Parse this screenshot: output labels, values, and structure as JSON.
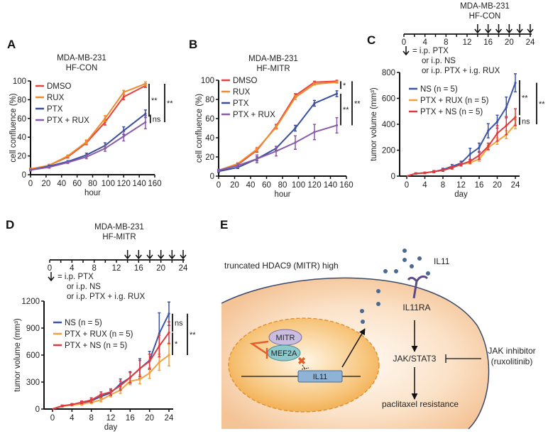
{
  "panels": {
    "A": {
      "label": "A"
    },
    "B": {
      "label": "B"
    },
    "C": {
      "label": "C"
    },
    "D": {
      "label": "D"
    },
    "E": {
      "label": "E",
      "cell_label": "truncated HDAC9 (MITR) high",
      "ligand": "IL11",
      "receptor": "IL11RA",
      "mitr": "MITR",
      "mef2a": "MEF2A",
      "gene": "IL11",
      "pathway": "JAK/STAT3",
      "outcome": "paclitaxel resistance",
      "inhibitor_line1": "JAK inhibitor",
      "inhibitor_line2": "(ruxolitinib)",
      "colors": {
        "cell": "#f6c9a0",
        "nucleus": "#f2a94a",
        "membrane": "#3b4a6b",
        "dots": "#4a6a94",
        "receptor": "#5b4a8a",
        "mitr": "#c9bde0",
        "mef2a": "#8cc8cc",
        "gene_box": "#8fb3d6"
      }
    }
  },
  "chart_data": [
    {
      "id": "A",
      "type": "line",
      "title": [
        "MDA-MB-231",
        "HF-CON"
      ],
      "xlabel": "hour",
      "ylabel": "cell confluence (%)",
      "xlim": [
        0,
        160
      ],
      "ylim": [
        0,
        100
      ],
      "xticks": [
        0,
        20,
        40,
        60,
        80,
        100,
        120,
        140,
        160
      ],
      "yticks": [
        0,
        20,
        40,
        60,
        80,
        100
      ],
      "x": [
        0,
        24,
        48,
        72,
        96,
        120,
        148
      ],
      "legend_position": "top-left",
      "series": [
        {
          "name": "DMSO",
          "color": "#e8413a",
          "values": [
            6,
            10,
            19,
            34,
            56,
            83,
            95
          ],
          "err": [
            1,
            1,
            1,
            2,
            3,
            3,
            2
          ]
        },
        {
          "name": "RUX",
          "color": "#f08c2c",
          "values": [
            6,
            10,
            20,
            35,
            60,
            88,
            97
          ],
          "err": [
            1,
            1,
            1,
            2,
            3,
            2,
            2
          ]
        },
        {
          "name": "PTX",
          "color": "#3a4f9c",
          "values": [
            5,
            9,
            14,
            21,
            31,
            47,
            65
          ],
          "err": [
            1,
            1,
            1,
            2,
            3,
            4,
            4
          ]
        },
        {
          "name": "PTX + RUX",
          "color": "#8a5aa8",
          "values": [
            5,
            8,
            13,
            19,
            28,
            41,
            56
          ],
          "err": [
            1,
            1,
            1,
            2,
            3,
            5,
            7
          ]
        }
      ],
      "significance": [
        {
          "from": 97,
          "to": 62,
          "label": "**",
          "level": 0
        },
        {
          "from": 64,
          "to": 55,
          "label": "ns",
          "level": 0.3
        },
        {
          "from": 97,
          "to": 56,
          "label": "**",
          "level": 1
        }
      ]
    },
    {
      "id": "B",
      "type": "line",
      "title": [
        "MDA-MB-231",
        "HF-MITR"
      ],
      "xlabel": "hour",
      "ylabel": "cell confluence (%)",
      "xlim": [
        0,
        160
      ],
      "ylim": [
        0,
        100
      ],
      "xticks": [
        0,
        20,
        40,
        60,
        80,
        100,
        120,
        140,
        160
      ],
      "yticks": [
        0,
        20,
        40,
        60,
        80,
        100
      ],
      "x": [
        0,
        24,
        48,
        72,
        96,
        120,
        148
      ],
      "legend_position": "top-left",
      "series": [
        {
          "name": "DMSO",
          "color": "#e8413a",
          "values": [
            6,
            12,
            27,
            52,
            84,
            98,
            99
          ],
          "err": [
            1,
            1,
            2,
            2,
            2,
            1,
            1
          ]
        },
        {
          "name": "RUX",
          "color": "#f08c2c",
          "values": [
            6,
            13,
            28,
            51,
            82,
            96,
            98
          ],
          "err": [
            1,
            1,
            2,
            2,
            2,
            1,
            1
          ]
        },
        {
          "name": "PTX",
          "color": "#3a4f9c",
          "values": [
            5,
            9,
            18,
            29,
            50,
            76,
            86
          ],
          "err": [
            1,
            1,
            2,
            2,
            3,
            3,
            3
          ]
        },
        {
          "name": "PTX + RUX",
          "color": "#8a5aa8",
          "values": [
            6,
            11,
            18,
            26,
            35,
            46,
            53
          ],
          "err": [
            1,
            2,
            4,
            5,
            7,
            8,
            8
          ]
        }
      ],
      "significance": [
        {
          "from": 99,
          "to": 91,
          "label": "*",
          "level": 0
        },
        {
          "from": 86,
          "to": 53,
          "label": "**",
          "level": 0
        },
        {
          "from": 99,
          "to": 53,
          "label": "**",
          "level": 1
        }
      ]
    },
    {
      "id": "C",
      "type": "line",
      "title": [
        "MDA-MB-231",
        "HF-CON"
      ],
      "xlabel": "day",
      "ylabel": "tumor volume (mm³)",
      "xlim": [
        0,
        24
      ],
      "ylim": [
        0,
        800
      ],
      "xticks": [
        0,
        4,
        8,
        12,
        16,
        20,
        24
      ],
      "yticks": [
        0,
        200,
        400,
        600,
        800
      ],
      "x": [
        0,
        2,
        4,
        6,
        8,
        10,
        12,
        14,
        16,
        18,
        20,
        22,
        24
      ],
      "legend_position": "top-left",
      "timeline": {
        "ticks": [
          0,
          4,
          8,
          12,
          16,
          20,
          24
        ],
        "treatment_days": [
          14,
          16,
          18,
          20,
          22,
          24
        ],
        "note": [
          "= i.p. PTX",
          "or i.p. NS",
          "or  i.p. PTX + i.g. RUX"
        ]
      },
      "series": [
        {
          "name": "NS (n = 5)",
          "color": "#3d55a5",
          "values": [
            0,
            20,
            25,
            35,
            50,
            75,
            100,
            170,
            220,
            350,
            420,
            530,
            720
          ],
          "err": [
            0,
            5,
            5,
            8,
            10,
            15,
            15,
            45,
            35,
            55,
            50,
            80,
            70
          ]
        },
        {
          "name": "PTX + RUX (n = 5)",
          "color": "#f3a13c",
          "values": [
            0,
            20,
            25,
            35,
            45,
            65,
            90,
            105,
            130,
            220,
            270,
            320,
            400
          ],
          "err": [
            0,
            5,
            5,
            6,
            8,
            10,
            10,
            12,
            15,
            20,
            25,
            30,
            35
          ]
        },
        {
          "name": "PTX + NS (n = 5)",
          "color": "#e0393e",
          "values": [
            0,
            20,
            25,
            35,
            45,
            65,
            90,
            115,
            160,
            230,
            330,
            390,
            455
          ],
          "err": [
            0,
            5,
            5,
            6,
            8,
            10,
            12,
            15,
            30,
            25,
            60,
            70,
            65
          ]
        }
      ],
      "significance": [
        {
          "from": 740,
          "to": 470,
          "label": "**",
          "level": 0
        },
        {
          "from": 455,
          "to": 395,
          "label": "ns",
          "level": 0
        },
        {
          "from": 720,
          "to": 400,
          "label": "**",
          "level": 1
        }
      ]
    },
    {
      "id": "D",
      "type": "line",
      "title": [
        "MDA-MB-231",
        "HF-MITR"
      ],
      "xlabel": "day",
      "ylabel": "tumor volume (mm³)",
      "xlim": [
        0,
        24
      ],
      "ylim": [
        0,
        1200
      ],
      "xticks": [
        0,
        4,
        8,
        12,
        16,
        20,
        24
      ],
      "yticks": [
        0,
        300,
        600,
        900,
        1200
      ],
      "x": [
        0,
        2,
        4,
        6,
        8,
        10,
        12,
        14,
        16,
        18,
        20,
        22,
        24
      ],
      "legend_position": "top-left",
      "timeline": {
        "ticks": [
          0,
          4,
          8,
          12,
          16,
          20,
          24
        ],
        "treatment_days": [
          14,
          16,
          18,
          20,
          22,
          24
        ],
        "note": [
          "= i.p. PTX",
          "or  i.p. NS",
          "or  i.p. PTX + i.g. RUX"
        ]
      },
      "series": [
        {
          "name": "NS (n = 5)",
          "color": "#3d55a5",
          "values": [
            0,
            35,
            50,
            65,
            90,
            140,
            180,
            280,
            350,
            450,
            540,
            840,
            1060
          ],
          "err": [
            0,
            8,
            10,
            15,
            20,
            25,
            30,
            55,
            65,
            110,
            100,
            230,
            130
          ]
        },
        {
          "name": "PTX + RUX (n = 5)",
          "color": "#f3a13c",
          "values": [
            0,
            30,
            45,
            55,
            75,
            100,
            160,
            210,
            310,
            330,
            400,
            520,
            600
          ],
          "err": [
            0,
            8,
            10,
            12,
            15,
            20,
            25,
            35,
            40,
            50,
            60,
            90,
            120
          ]
        },
        {
          "name": "PTX + NS (n = 5)",
          "color": "#e0393e",
          "values": [
            0,
            35,
            50,
            75,
            100,
            160,
            190,
            260,
            350,
            450,
            530,
            700,
            850
          ],
          "err": [
            0,
            8,
            10,
            15,
            25,
            30,
            35,
            50,
            55,
            90,
            80,
            120,
            120
          ]
        }
      ],
      "significance": [
        {
          "from": 1060,
          "to": 860,
          "label": "ns",
          "level": 0
        },
        {
          "from": 850,
          "to": 600,
          "label": "*",
          "level": 0
        },
        {
          "from": 1060,
          "to": 600,
          "label": "**",
          "level": 1
        }
      ]
    }
  ]
}
